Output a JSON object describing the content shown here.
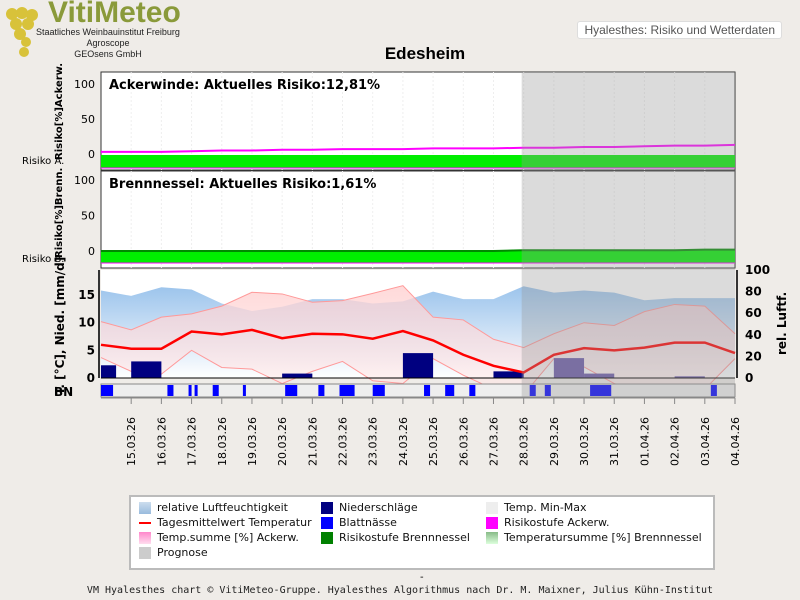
{
  "header": {
    "logo": "VitiMeteo",
    "logo_lines": [
      "Staatliches Weinbauinstitut Freiburg",
      "Agroscope",
      "GEOsens GmbH"
    ],
    "app_title": "Hyalesthes: Risiko und Wetterdaten",
    "title": "Edesheim"
  },
  "chart_data": {
    "type": "line",
    "title": "Edesheim",
    "dates": [
      "15.03.26",
      "16.03.26",
      "17.03.26",
      "18.03.26",
      "19.03.26",
      "20.03.26",
      "21.03.26",
      "22.03.26",
      "23.03.26",
      "24.03.26",
      "25.03.26",
      "26.03.26",
      "27.03.26",
      "28.03.26",
      "29.03.26",
      "30.03.26",
      "31.03.26",
      "01.04.26",
      "02.04.26",
      "03.04.26",
      "04.04.26"
    ],
    "prognose_from": "28.03.26",
    "panels": [
      {
        "name": "Ackerwinde",
        "title": "Ackerwinde:  Aktuelles Risiko:12,81%",
        "ylabel": "Risiko[%]Ackerw.",
        "side_label": "Risiko A.",
        "yticks": [
          "0",
          "50",
          "100"
        ],
        "risk_percent": [
          3,
          3,
          3,
          4,
          5,
          5,
          6,
          6,
          7,
          7,
          7,
          8,
          8,
          8,
          9,
          9,
          10,
          10,
          11,
          12,
          12,
          13
        ],
        "risk_level_color": "#00ee00"
      },
      {
        "name": "Brennnessel",
        "title": "Brennnessel:  Aktuelles Risiko:1,61%",
        "ylabel": "Risiko[%]Brenn.",
        "side_label": "Risiko B.",
        "yticks": [
          "0",
          "50",
          "100"
        ],
        "risk_percent": [
          0,
          0,
          0,
          0,
          0,
          0,
          0,
          0,
          0,
          0,
          0,
          0,
          0,
          0,
          1,
          1,
          1,
          1,
          1,
          1,
          2,
          2
        ],
        "risk_level_color": "#00ee00"
      }
    ],
    "weather": {
      "ylabel_left": "T. [°C], Nied. [mm/d]",
      "ylabel_right": "rel. Luftf.",
      "yticks_left": [
        "0",
        "5",
        "10",
        "15"
      ],
      "yticks_right": [
        "0",
        "20",
        "40",
        "60",
        "80",
        "100"
      ],
      "ylim_left": [
        0,
        19.5
      ],
      "ylim_right": [
        0,
        100
      ],
      "bn_label": "BN",
      "temp_mean": [
        6,
        5.3,
        5.3,
        8.4,
        7.9,
        8.7,
        7.2,
        8,
        7.9,
        7.1,
        8.5,
        6.8,
        4.2,
        2.2,
        1,
        4.2,
        5.4,
        5,
        5.5,
        6.4,
        6.4,
        4.5
      ],
      "temp_max": [
        10.2,
        8.7,
        11,
        11.6,
        13,
        15.5,
        15.2,
        13.7,
        14,
        15.3,
        16.7,
        11,
        10.5,
        7,
        5.5,
        8,
        10,
        9.5,
        12,
        13.3,
        13,
        8
      ],
      "temp_min": [
        3.7,
        1.2,
        0.7,
        5,
        1.9,
        1.6,
        -1,
        1.2,
        3,
        -0.5,
        -1,
        3.5,
        0.5,
        -2,
        -3,
        3.5,
        2,
        -1,
        -3,
        -3,
        -2,
        3.5
      ],
      "humidity": [
        81,
        76,
        84,
        82,
        69,
        62,
        66,
        73,
        73,
        69,
        71,
        80,
        73,
        73,
        85,
        79,
        81,
        79,
        72,
        74,
        74,
        74
      ],
      "precip": [
        {
          "day": 0,
          "v": 2.3,
          "w": 0.5
        },
        {
          "day": 1.5,
          "v": 3,
          "w": 1
        },
        {
          "day": 6.5,
          "v": 0.8,
          "w": 1
        },
        {
          "day": 10.5,
          "v": 4.5,
          "w": 1
        },
        {
          "day": 13.5,
          "v": 1.2,
          "w": 1
        },
        {
          "day": 15.5,
          "v": 3.6,
          "w": 1
        },
        {
          "day": 16.5,
          "v": 0.8,
          "w": 1
        },
        {
          "day": 19.5,
          "v": 0.3,
          "w": 1
        }
      ],
      "leaf_wetness": [
        [
          0,
          0.4
        ],
        [
          2.2,
          2.4
        ],
        [
          2.9,
          3
        ],
        [
          3.1,
          3.2
        ],
        [
          3.7,
          3.9
        ],
        [
          4.7,
          4.8
        ],
        [
          6.1,
          6.5
        ],
        [
          7.2,
          7.4
        ],
        [
          7.9,
          8.4
        ],
        [
          9,
          9.4
        ],
        [
          10.7,
          10.9
        ],
        [
          11.4,
          11.7
        ],
        [
          12.2,
          12.4
        ],
        [
          14.2,
          14.4
        ],
        [
          14.7,
          14.9
        ],
        [
          16.2,
          16.9
        ],
        [
          20.2,
          20.4
        ]
      ]
    },
    "legend": [
      "relative Luftfeuchtigkeit",
      "Niederschläge",
      "Temp. Min-Max",
      "Tagesmittelwert Temperatur",
      "Blattnässe",
      "Risikostufe Ackerw.",
      "Temp.summe [%] Ackerw.",
      "Risikostufe Brennnessel",
      "Temperatursumme [%] Brennnessel",
      "Prognose"
    ]
  },
  "footer": {
    "dash": "-",
    "text": "VM Hyalesthes chart © VitiMeteo-Gruppe. Hyalesthes Algorithmus nach Dr. M. Maixner, Julius Kühn-Institut"
  }
}
